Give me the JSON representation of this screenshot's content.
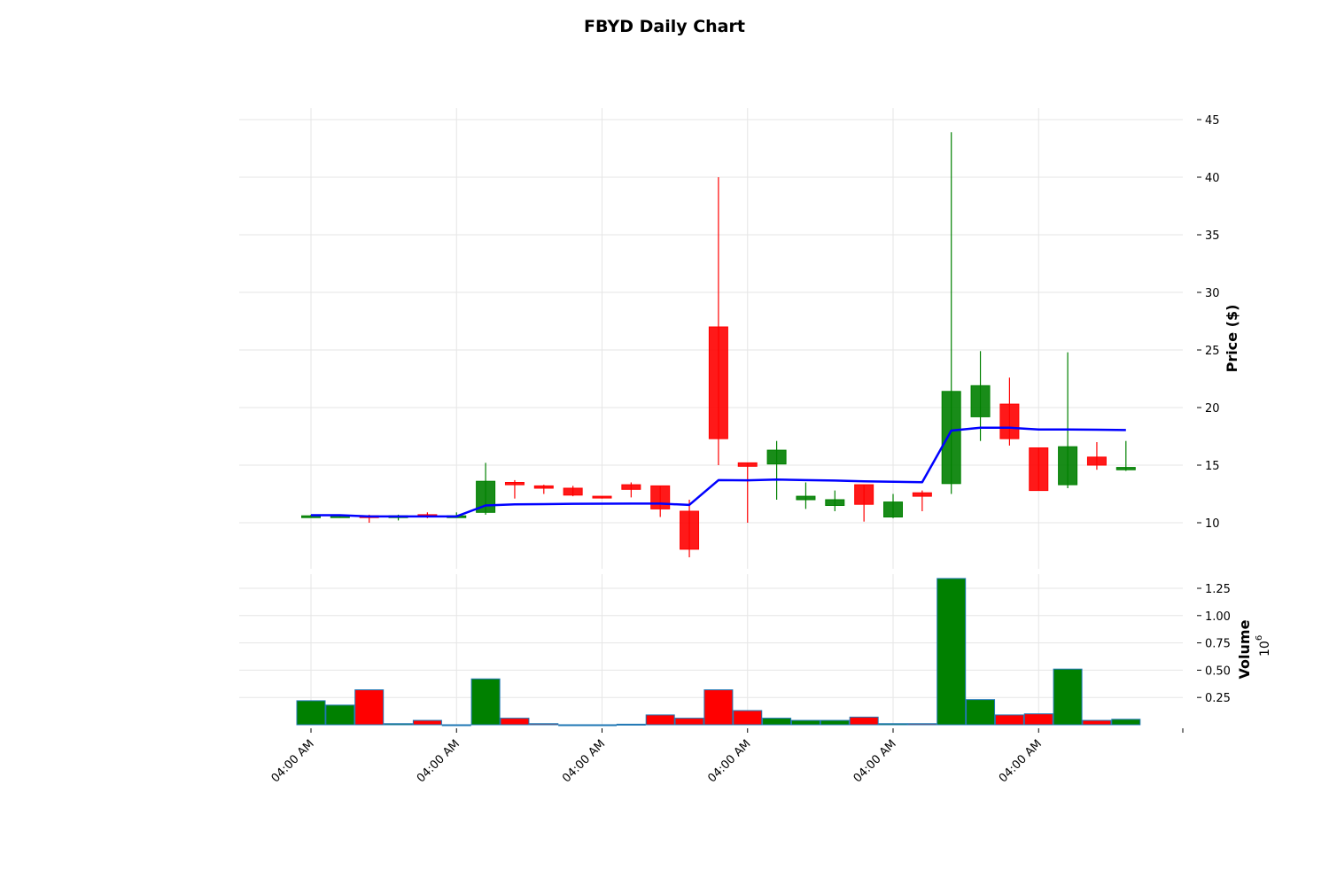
{
  "chart_data": {
    "type": "candlestick",
    "title": "FBYD Daily Chart",
    "ylabel_price": "Price ($)",
    "ylabel_volume": "Volume",
    "volume_exponent_base": "10",
    "volume_exponent_power": "6",
    "price_ylim": [
      6,
      46
    ],
    "price_ticks": [
      10,
      15,
      20,
      25,
      30,
      35,
      40,
      45
    ],
    "volume_ylim": [
      0,
      1.38
    ],
    "volume_ticks": [
      "0.25",
      "0.50",
      "0.75",
      "1.00",
      "1.25"
    ],
    "volume_tick_values": [
      0.25,
      0.5,
      0.75,
      1.0,
      1.25
    ],
    "x_tick_labels": [
      "04:00 AM",
      "04:00 AM",
      "04:00 AM",
      "04:00 AM",
      "04:00 AM",
      "04:00 AM"
    ],
    "x_tick_indices": [
      0,
      5,
      10,
      15,
      20,
      25
    ],
    "colors": {
      "up": "#008000",
      "down": "#ff0000",
      "ma": "#0000ff"
    },
    "grid": true,
    "candles": [
      {
        "open": 10.6,
        "high": 10.7,
        "low": 10.5,
        "close": 10.6,
        "volume": 0.22
      },
      {
        "open": 10.6,
        "high": 10.7,
        "low": 10.5,
        "close": 10.6,
        "volume": 0.18
      },
      {
        "open": 10.6,
        "high": 10.7,
        "low": 10.0,
        "close": 10.5,
        "volume": 0.32
      },
      {
        "open": 10.5,
        "high": 10.7,
        "low": 10.2,
        "close": 10.6,
        "volume": 0.01
      },
      {
        "open": 10.7,
        "high": 10.9,
        "low": 10.4,
        "close": 10.5,
        "volume": 0.04
      },
      {
        "open": 10.5,
        "high": 10.9,
        "low": 10.5,
        "close": 10.6,
        "volume": 0.0
      },
      {
        "open": 10.9,
        "high": 15.2,
        "low": 10.7,
        "close": 13.6,
        "volume": 0.42
      },
      {
        "open": 13.5,
        "high": 13.7,
        "low": 12.1,
        "close": 13.3,
        "volume": 0.06
      },
      {
        "open": 13.2,
        "high": 13.3,
        "low": 12.5,
        "close": 13.0,
        "volume": 0.01
      },
      {
        "open": 13.0,
        "high": 13.2,
        "low": 12.3,
        "close": 12.4,
        "volume": 0.0
      },
      {
        "open": 12.3,
        "high": 12.3,
        "low": 12.1,
        "close": 12.2,
        "volume": 0.0
      },
      {
        "open": 13.3,
        "high": 13.5,
        "low": 12.2,
        "close": 12.9,
        "volume": 0.005
      },
      {
        "open": 13.2,
        "high": 13.2,
        "low": 10.5,
        "close": 11.2,
        "volume": 0.09
      },
      {
        "open": 11.0,
        "high": 12.0,
        "low": 7.0,
        "close": 7.7,
        "volume": 0.06
      },
      {
        "open": 27.0,
        "high": 40.0,
        "low": 15.0,
        "close": 17.3,
        "volume": 0.32
      },
      {
        "open": 15.2,
        "high": 15.2,
        "low": 10.0,
        "close": 14.9,
        "volume": 0.13
      },
      {
        "open": 15.1,
        "high": 17.1,
        "low": 12.0,
        "close": 16.3,
        "volume": 0.06
      },
      {
        "open": 12.0,
        "high": 13.5,
        "low": 11.2,
        "close": 12.3,
        "volume": 0.04
      },
      {
        "open": 11.5,
        "high": 12.8,
        "low": 11.0,
        "close": 12.0,
        "volume": 0.04
      },
      {
        "open": 13.3,
        "high": 13.3,
        "low": 10.1,
        "close": 11.6,
        "volume": 0.07
      },
      {
        "open": 10.5,
        "high": 12.5,
        "low": 10.4,
        "close": 11.8,
        "volume": 0.01
      },
      {
        "open": 12.6,
        "high": 12.8,
        "low": 11.0,
        "close": 12.3,
        "volume": 0.01
      },
      {
        "open": 13.4,
        "high": 43.9,
        "low": 12.5,
        "close": 21.4,
        "volume": 1.34
      },
      {
        "open": 19.2,
        "high": 24.9,
        "low": 17.1,
        "close": 21.9,
        "volume": 0.23
      },
      {
        "open": 20.3,
        "high": 22.6,
        "low": 16.7,
        "close": 17.3,
        "volume": 0.09
      },
      {
        "open": 16.5,
        "high": 16.5,
        "low": 12.8,
        "close": 12.8,
        "volume": 0.1
      },
      {
        "open": 13.3,
        "high": 24.8,
        "low": 13.0,
        "close": 16.6,
        "volume": 0.51
      },
      {
        "open": 15.7,
        "high": 17.0,
        "low": 14.6,
        "close": 15.0,
        "volume": 0.04
      },
      {
        "open": 14.6,
        "high": 17.1,
        "low": 14.5,
        "close": 14.8,
        "volume": 0.05
      }
    ],
    "moving_average": [
      10.65,
      10.65,
      10.55,
      10.55,
      10.55,
      10.55,
      11.5,
      11.6,
      11.62,
      11.64,
      11.65,
      11.66,
      11.66,
      11.55,
      13.7,
      13.68,
      13.75,
      13.7,
      13.66,
      13.6,
      13.56,
      13.52,
      18.0,
      18.25,
      18.25,
      18.1,
      18.1,
      18.08,
      18.05
    ]
  }
}
